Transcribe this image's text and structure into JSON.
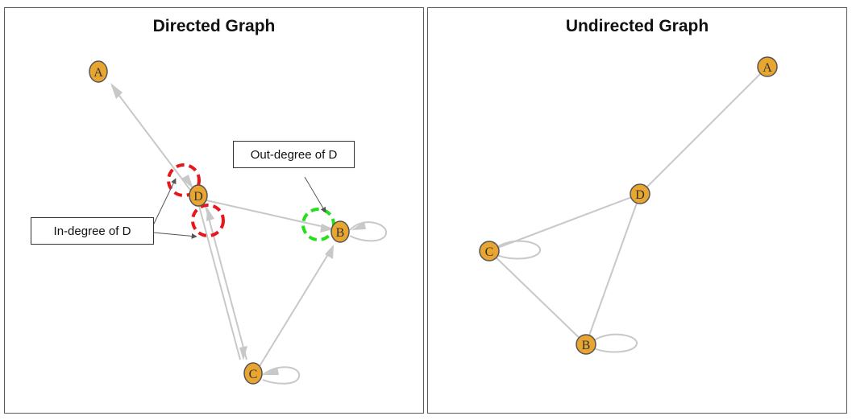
{
  "panels": {
    "left": {
      "title": "Directed Graph"
    },
    "right": {
      "title": "Undirected Graph"
    }
  },
  "directed_graph": {
    "nodes": [
      "A",
      "D",
      "B",
      "C"
    ],
    "edges": [
      {
        "from": "D",
        "to": "A"
      },
      {
        "from": "A",
        "to": "D"
      },
      {
        "from": "D",
        "to": "B"
      },
      {
        "from": "D",
        "to": "C"
      },
      {
        "from": "C",
        "to": "D"
      },
      {
        "from": "C",
        "to": "B"
      },
      {
        "from": "B",
        "to": "B"
      },
      {
        "from": "C",
        "to": "C"
      }
    ]
  },
  "undirected_graph": {
    "nodes": [
      "A",
      "D",
      "C",
      "B"
    ],
    "edges": [
      {
        "from": "A",
        "to": "D"
      },
      {
        "from": "D",
        "to": "C"
      },
      {
        "from": "D",
        "to": "B"
      },
      {
        "from": "C",
        "to": "B"
      },
      {
        "from": "C",
        "to": "C"
      },
      {
        "from": "B",
        "to": "B"
      }
    ]
  },
  "annotations": {
    "out_degree": "Out-degree of D",
    "in_degree": "In-degree of D"
  },
  "colors": {
    "node_fill": "#E8A530",
    "node_stroke": "#555555",
    "edge": "#c8c8c8",
    "in_degree_highlight": "#e8161b",
    "out_degree_highlight": "#22e01a"
  }
}
